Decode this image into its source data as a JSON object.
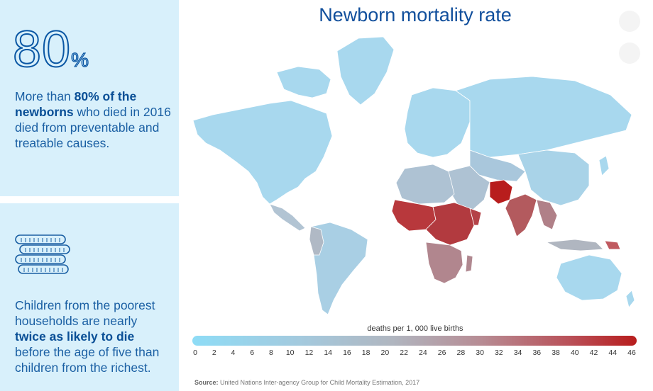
{
  "stat1": {
    "number": "80",
    "percent": "%",
    "text_1": "More than ",
    "text_bold": "80% of the newborns",
    "text_2": " who died in 2016 died from preventable and treatable causes."
  },
  "stat2": {
    "icon": "coins-icon",
    "text_1": "Children from the poorest households are nearly ",
    "text_bold_1": "twice as likely to die",
    "text_2": " before the age of five than children from the richest."
  },
  "map": {
    "title": "Newborn mortality rate",
    "legend_title": "deaths per 1, 000 live births",
    "legend_ticks": [
      "0",
      "2",
      "4",
      "6",
      "8",
      "10",
      "12",
      "14",
      "16",
      "18",
      "20",
      "22",
      "24",
      "26",
      "28",
      "30",
      "32",
      "34",
      "36",
      "38",
      "40",
      "42",
      "44",
      "46"
    ],
    "colors": {
      "low": "#8edcf6",
      "mid": "#b0b6c0",
      "high": "#b81d1d",
      "land": "#a8d8ee",
      "border": "#ffffff"
    }
  },
  "source": {
    "label": "Source:",
    "text": " United Nations Inter-agency Group for Child Mortality Estimation, 2017"
  }
}
